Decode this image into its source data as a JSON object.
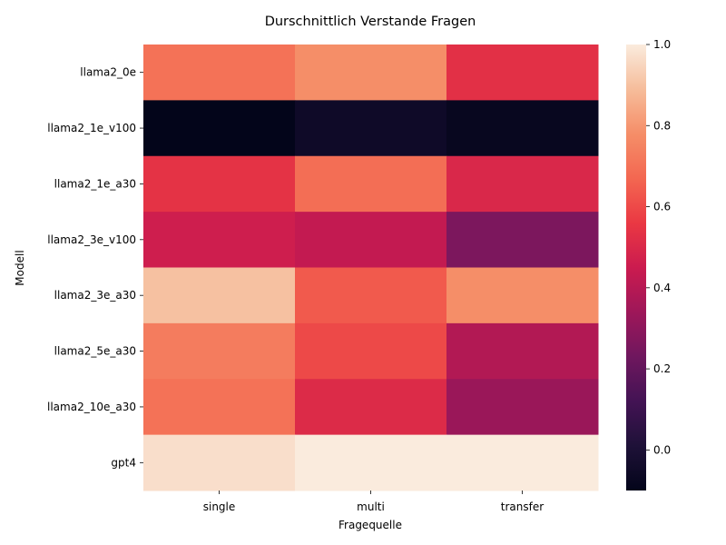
{
  "chart_data": {
    "type": "heatmap",
    "title": "Durschnittlich Verstande Fragen",
    "xlabel": "Fragequelle",
    "ylabel": "Modell",
    "x_categories": [
      "single",
      "multi",
      "transfer"
    ],
    "y_categories": [
      "llama2_0e",
      "llama2_1e_v100",
      "llama2_1e_a30",
      "llama2_3e_v100",
      "llama2_3e_a30",
      "llama2_5e_a30",
      "llama2_10e_a30",
      "gpt4"
    ],
    "values": [
      [
        0.7,
        0.78,
        0.53
      ],
      [
        -0.1,
        -0.05,
        -0.08
      ],
      [
        0.54,
        0.69,
        0.5
      ],
      [
        0.46,
        0.43,
        0.26
      ],
      [
        0.9,
        0.64,
        0.78
      ],
      [
        0.73,
        0.6,
        0.39
      ],
      [
        0.7,
        0.51,
        0.33
      ],
      [
        0.97,
        1.0,
        1.0
      ]
    ],
    "colorbar": {
      "vmin": -0.1,
      "vmax": 1.0,
      "ticks": [
        "0.0",
        "0.2",
        "0.4",
        "0.6",
        "0.8",
        "1.0"
      ],
      "tick_values": [
        0.0,
        0.2,
        0.4,
        0.6,
        0.8,
        1.0
      ],
      "colormap": "rocket"
    }
  }
}
